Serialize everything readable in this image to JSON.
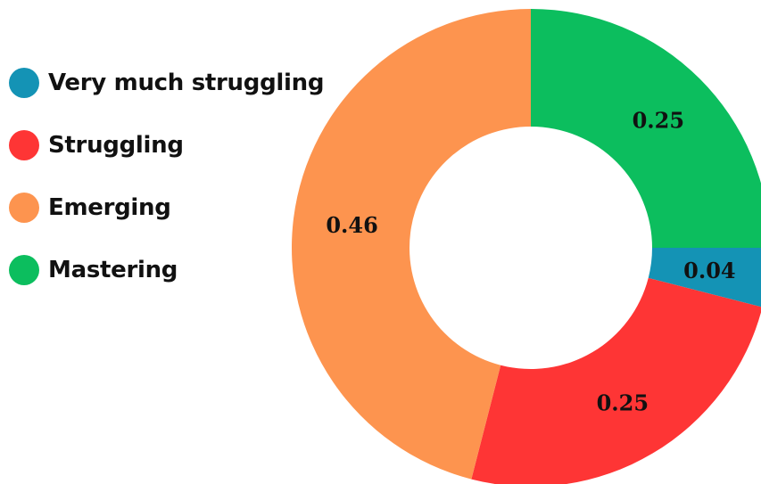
{
  "chart_data": {
    "type": "pie",
    "donut": true,
    "legend_position": "top-left",
    "categories": [
      "Very much struggling",
      "Struggling",
      "Emerging",
      "Mastering"
    ],
    "values": [
      0.04,
      0.25,
      0.46,
      0.25
    ],
    "data_labels": [
      "0.04",
      "0.25",
      "0.46",
      "0.25"
    ],
    "colors": [
      "#1493b5",
      "#fe3535",
      "#fd944f",
      "#0cbe5e"
    ]
  }
}
